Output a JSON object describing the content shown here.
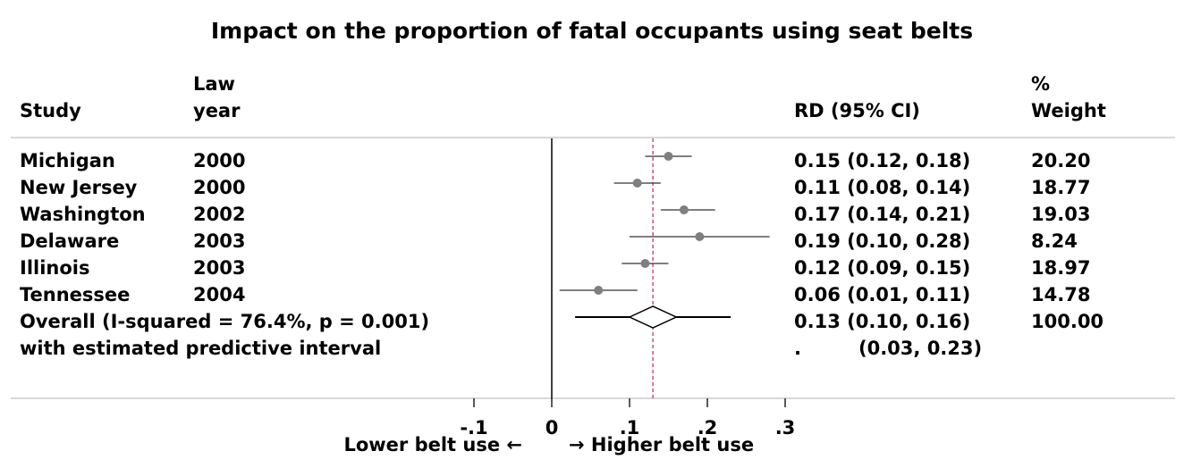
{
  "chart_data": {
    "type": "forest",
    "title": "Impact on the proportion of fatal occupants using seat belts",
    "columns": {
      "study": "Study",
      "law_year": [
        "Law",
        "year"
      ],
      "effect": "RD (95% CI)",
      "weight": [
        "%",
        "Weight"
      ]
    },
    "studies": [
      {
        "name": "Michigan",
        "year": "2000",
        "rd": 0.15,
        "lo": 0.12,
        "hi": 0.18,
        "ci_text": "0.15 (0.12, 0.18)",
        "weight": "20.20"
      },
      {
        "name": "New Jersey",
        "year": "2000",
        "rd": 0.11,
        "lo": 0.08,
        "hi": 0.14,
        "ci_text": "0.11 (0.08, 0.14)",
        "weight": "18.77"
      },
      {
        "name": "Washington",
        "year": "2002",
        "rd": 0.17,
        "lo": 0.14,
        "hi": 0.21,
        "ci_text": "0.17 (0.14, 0.21)",
        "weight": "19.03"
      },
      {
        "name": "Delaware",
        "year": "2003",
        "rd": 0.19,
        "lo": 0.1,
        "hi": 0.28,
        "ci_text": "0.19 (0.10, 0.28)",
        "weight": "8.24"
      },
      {
        "name": "Illinois",
        "year": "2003",
        "rd": 0.12,
        "lo": 0.09,
        "hi": 0.15,
        "ci_text": "0.12 (0.09, 0.15)",
        "weight": "18.97"
      },
      {
        "name": "Tennessee",
        "year": "2004",
        "rd": 0.06,
        "lo": 0.01,
        "hi": 0.11,
        "ci_text": "0.06 (0.01, 0.11)",
        "weight": "14.78"
      }
    ],
    "overall": {
      "label": "Overall  (I-squared = 76.4%, p = 0.001)",
      "rd": 0.13,
      "lo": 0.1,
      "hi": 0.16,
      "ci_text": "0.13 (0.10, 0.16)",
      "weight": "100.00",
      "pred_lo": 0.03,
      "pred_hi": 0.23
    },
    "predictive": {
      "label": "with estimated predictive interval",
      "dot": ".",
      "ci_text": "(0.03, 0.23)"
    },
    "x_ticks": [
      -0.1,
      0,
      0.1,
      0.2,
      0.3
    ],
    "x_tick_labels": [
      "-.1",
      "0",
      ".1",
      ".2",
      ".3"
    ],
    "xlim": [
      -0.1,
      0.3
    ],
    "xlabel_left": "Lower belt use ←",
    "xlabel_right": "→ Higher belt use",
    "null_line": 0,
    "colors": {
      "marker": "#7f7f7f",
      "ci_line": "#000000",
      "reference_line": "#c0395a",
      "divider": "#cccccc"
    }
  }
}
